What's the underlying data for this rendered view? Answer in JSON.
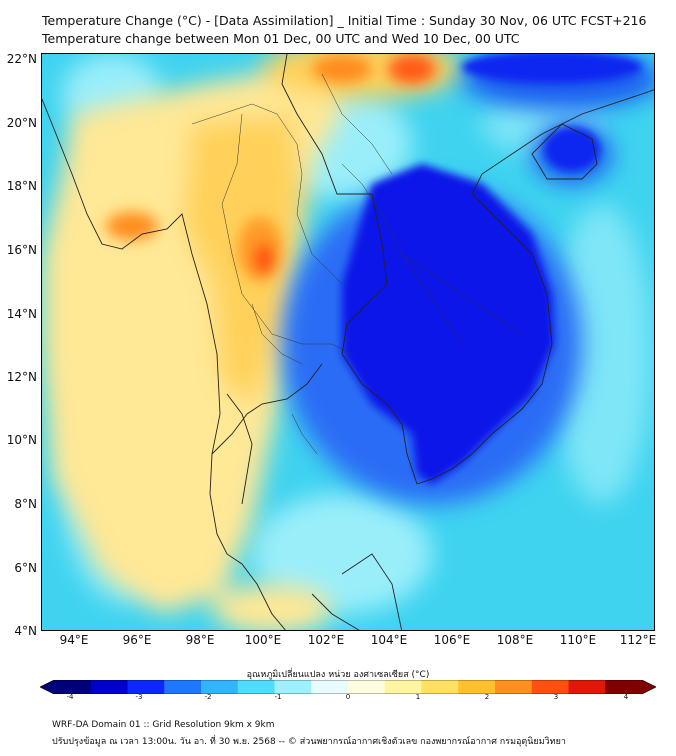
{
  "header": {
    "title_line1": "Temperature Change (°C) - [Data Assimilation] _ Initial Time : Sunday 30 Nov, 06 UTC FCST+216",
    "title_line2": "Temperature change between Mon 01 Dec, 00 UTC and Wed 10 Dec, 00 UTC"
  },
  "map": {
    "lat_labels": [
      "22°N",
      "20°N",
      "18°N",
      "16°N",
      "14°N",
      "12°N",
      "10°N",
      "8°N",
      "6°N",
      "4°N"
    ],
    "lon_labels": [
      "94°E",
      "96°E",
      "98°E",
      "100°E",
      "102°E",
      "104°E",
      "106°E",
      "108°E",
      "110°E",
      "112°E"
    ],
    "field": "Temperature change (°C)",
    "background_color": "#3fd3f0",
    "strong_cooling_color": "#0a14e8",
    "warming_colors": [
      "#ffe38a",
      "#ffc23a",
      "#ff8a1f",
      "#ff3a10"
    ]
  },
  "colorbar": {
    "title": "อุณหภูมิเปลี่ยนแปลง หน่วย องศาเซลเซียส (°C)",
    "ticks": [
      "-4",
      "-3",
      "-2",
      "-1",
      "0",
      "1",
      "2",
      "3",
      "4"
    ],
    "min": -4,
    "max": 4,
    "colors": [
      "#00007a",
      "#0000c8",
      "#0a28ff",
      "#1e78ff",
      "#32b4ff",
      "#50dcff",
      "#9ef0ff",
      "#e8fbff",
      "#fffde0",
      "#fff4a0",
      "#ffe060",
      "#ffc030",
      "#ff9020",
      "#ff5010",
      "#e01808",
      "#800000"
    ]
  },
  "footer": {
    "line1": "WRF-DA Domain 01 :: Grid Resolution 9km x 9km",
    "line2": "ปรับปรุงข้อมูล ณ เวลา 13:00น. วัน อา. ที่ 30 พ.ย. 2568 -- © ส่วนพยากรณ์อากาศเชิงตัวเลข กองพยากรณ์อากาศ กรมอุตุนิยมวิทยา"
  }
}
